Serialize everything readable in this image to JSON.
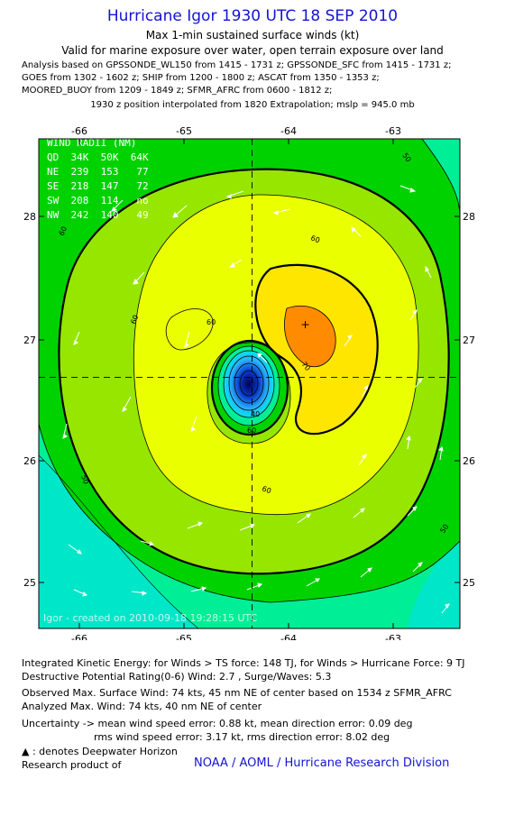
{
  "header": {
    "title": "Hurricane Igor 1930 UTC 18 SEP 2010",
    "subtitle": "Max 1-min sustained surface winds (kt)",
    "valid": "Valid for marine exposure over water, open terrain exposure over land",
    "analysis_lines": [
      "Analysis based on GPSSONDE_WL150 from 1415 - 1731 z; GPSSONDE_SFC from 1415 - 1731 z;",
      "GOES from 1302 - 1602 z; SHIP from 1200 - 1800 z; ASCAT from 1350 - 1353 z;",
      "MOORED_BUOY from 1209 - 1849 z; SFMR_AFRC from 0600 - 1812 z;"
    ],
    "interpolation": "1930 z position interpolated from 1820 Extrapolation; mslp = 945.0 mb"
  },
  "map": {
    "x_ticks": [
      "-66",
      "-65",
      "-64",
      "-63"
    ],
    "y_ticks": [
      "28",
      "27",
      "26",
      "25"
    ],
    "x_tick_values": [
      -66,
      -65,
      -64,
      -63
    ],
    "y_tick_values": [
      28,
      27,
      26,
      25
    ],
    "lon_range": [
      -66.3,
      -62.35
    ],
    "lat_range": [
      24.6,
      28.5
    ],
    "center": {
      "lon": -64.3,
      "lat": 26.6
    },
    "wind_max_marker": {
      "lon": -63.8,
      "lat": 27.02
    },
    "contour_labels": [
      "50",
      "60",
      "60",
      "60",
      "70",
      "60",
      "40",
      "60",
      "50",
      "50",
      "60"
    ],
    "wind_radii": {
      "title": "WIND RADII (NM)",
      "rows": [
        "QD  34K  50K  64K",
        "NE  239  153   77",
        "SE  218  147   72",
        "SW  208  114   no",
        "NW  242  140   49"
      ]
    },
    "stamp": "Igor - created on 2010-09-18 19:28:15 UTC",
    "colors": {
      "lt35": "#00e6c8",
      "35_40": "#00ee96",
      "40_50": "#00d200",
      "50_60": "#96e600",
      "60_70": "#eaff00",
      "70_80": "#ffe600",
      "80_90": "#ff8c00",
      "core": "#1e64ff"
    }
  },
  "footer": {
    "ike": "Integrated Kinetic Energy:  for Winds > TS force: 148 TJ,  for Winds > Hurricane Force: 9 TJ",
    "dpr": "Destructive Potential Rating(0-6)   Wind: 2.7 , Surge/Waves: 5.3",
    "observed": "Observed Max. Surface Wind: 74 kts, 45 nm NE of center based on 1534 z SFMR_AFRC",
    "analyzed": "Analyzed Max. Wind: 74 kts, 40 nm NE of center",
    "uncertainty_1": "Uncertainty -> mean wind speed error: 0.88 kt,   mean direction error: 0.09 deg",
    "uncertainty_2": "rms wind speed error: 3.17 kt,   rms direction error: 8.02 deg",
    "deepwater": ": denotes Deepwater Horizon",
    "research": "Research product of",
    "org": "NOAA / AOML / Hurricane Research Division"
  }
}
